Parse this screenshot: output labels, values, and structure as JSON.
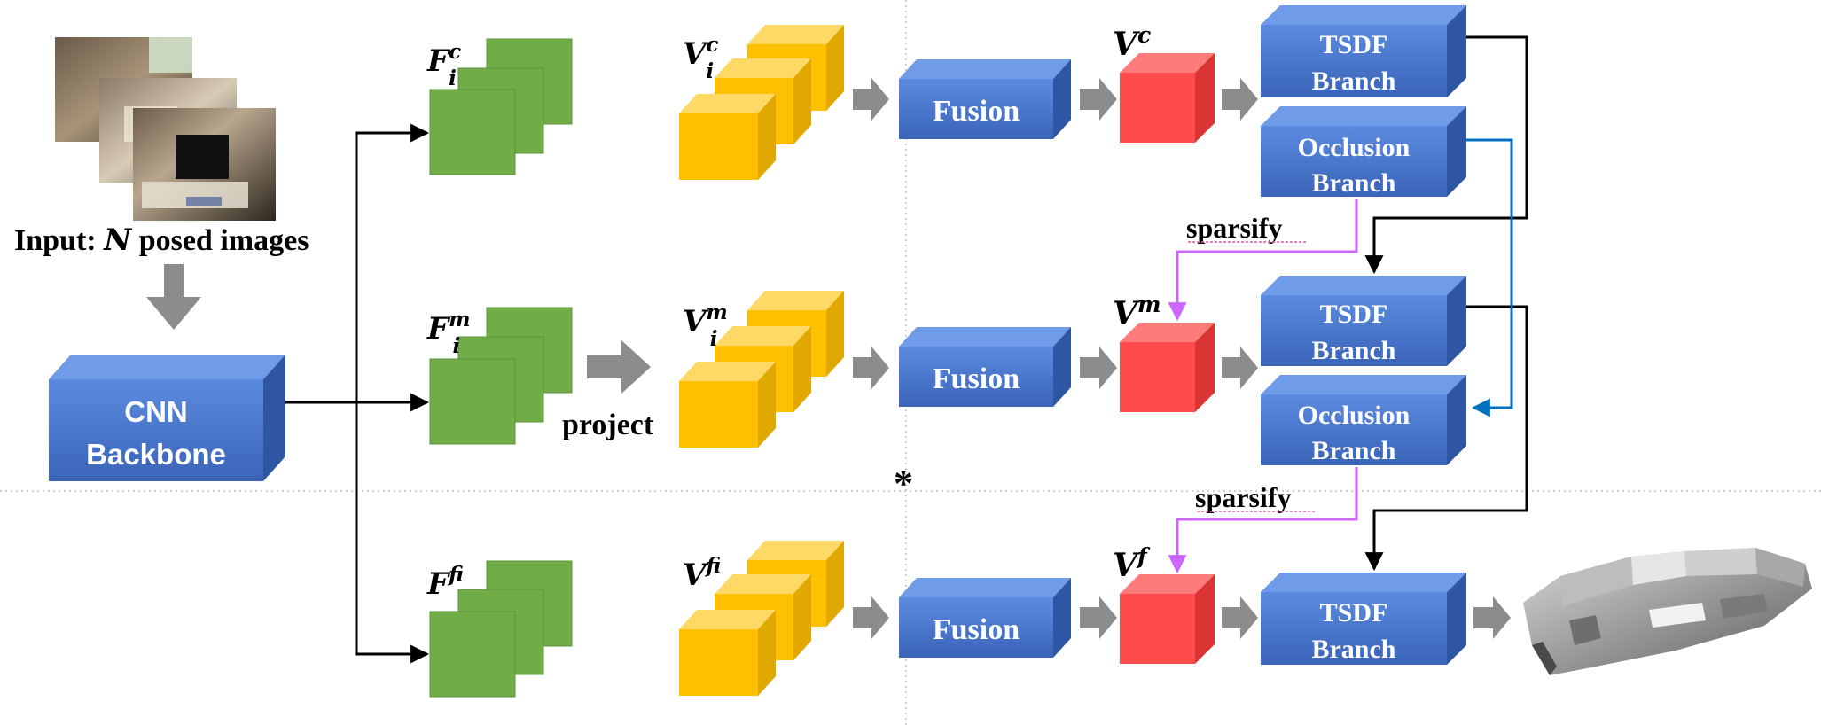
{
  "input": {
    "prefix": "Input: ",
    "n": "N",
    "suffix": " posed images"
  },
  "backbone": {
    "line1": "CNN",
    "line2": "Backbone"
  },
  "features": {
    "coarse": {
      "base": "F",
      "sup": "c",
      "sub": "i"
    },
    "medium": {
      "base": "F",
      "sup": "m",
      "sub": "i"
    },
    "fine": {
      "base": "F",
      "sup": "f",
      "sub": "i"
    }
  },
  "project_label": "project",
  "voxels": {
    "coarse": {
      "base": "V",
      "sup": "c",
      "sub": "i"
    },
    "medium": {
      "base": "V",
      "sup": "m",
      "sub": "i"
    },
    "fine": {
      "base": "V",
      "sup": "f",
      "sub": "i"
    }
  },
  "fusion_label": "Fusion",
  "volumes": {
    "coarse": {
      "base": "V",
      "sup": "c"
    },
    "medium": {
      "base": "V",
      "sup": "m"
    },
    "fine": {
      "base": "V",
      "sup": "f"
    }
  },
  "tsdf": {
    "line1": "TSDF",
    "line2": "Branch"
  },
  "occlusion": {
    "line1": "Occlusion",
    "line2": "Branch"
  },
  "sparsify_label": "sparsify",
  "asterisk": "*",
  "colors": {
    "blue": "#4472C4",
    "green": "#70AD47",
    "yellow": "#FFC000",
    "red": "#FF4B4B",
    "gray_arrow": "#8C8C8C",
    "purple": "#CC66FF",
    "teal": "#0070C0"
  }
}
